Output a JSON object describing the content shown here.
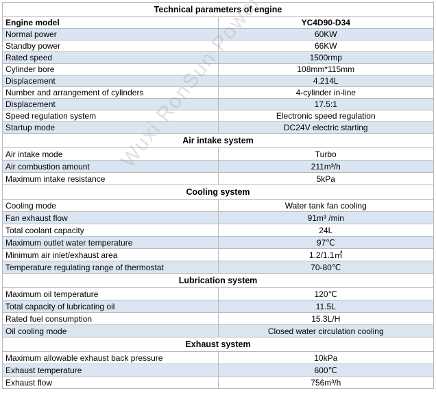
{
  "title": "Technical parameters of engine",
  "model_row": {
    "label": "Engine model",
    "value": "YC4D90-D34"
  },
  "engine_rows": [
    {
      "label": "Normal power",
      "value": "60KW"
    },
    {
      "label": "Standby power",
      "value": "66KW"
    },
    {
      "label": "Rated speed",
      "value": "1500rmp"
    },
    {
      "label": "Cylinder bore",
      "value": "108mm*115mm"
    },
    {
      "label": "Displacement",
      "value": "4.214L"
    },
    {
      "label": "Number and arrangement of cylinders",
      "value": "4-cylinder in-line"
    },
    {
      "label": "Displacement",
      "value": "17.5:1"
    },
    {
      "label": "Speed regulation system",
      "value": "Electronic speed regulation"
    },
    {
      "label": "Startup mode",
      "value": "DC24V electric starting"
    }
  ],
  "air_intake": {
    "title": "Air intake system",
    "rows": [
      {
        "label": "Air intake mode",
        "value": "Turbo"
      },
      {
        "label": "Air combustion amount",
        "value": "211m³/h"
      },
      {
        "label": "Maximum intake resistance",
        "value": "5kPa"
      }
    ]
  },
  "cooling": {
    "title": "Cooling system",
    "rows": [
      {
        "label": "Cooling mode",
        "value": "Water tank fan cooling"
      },
      {
        "label": "Fan exhaust flow",
        "value": "91m³ /min"
      },
      {
        "label": "Total coolant capacity",
        "value": "24L"
      },
      {
        "label": "Maximum outlet water temperature",
        "value": "97℃"
      },
      {
        "label": "Minimum air inlet/exhaust area",
        "value": "1.2/1.1㎡"
      },
      {
        "label": "Temperature regulating range of thermostat",
        "value": "70-80℃"
      }
    ]
  },
  "lubrication": {
    "title": "Lubrication system",
    "rows": [
      {
        "label": "Maximum oil temperature",
        "value": "120℃"
      },
      {
        "label": "Total capacity of lubricating oil",
        "value": "11.5L"
      },
      {
        "label": "Rated fuel consumption",
        "value": "15.3L/H"
      },
      {
        "label": "Oil cooling mode",
        "value": "Closed water circulation cooling"
      }
    ]
  },
  "exhaust": {
    "title": "Exhaust system",
    "rows": [
      {
        "label": "Maximum allowable exhaust back pressure",
        "value": "10kPa"
      },
      {
        "label": "Exhaust temperature",
        "value": "600℃"
      },
      {
        "label": "Exhaust flow",
        "value": "756m³/h"
      }
    ]
  },
  "watermark": "Wuxi RonSun Power Technology Co.,"
}
